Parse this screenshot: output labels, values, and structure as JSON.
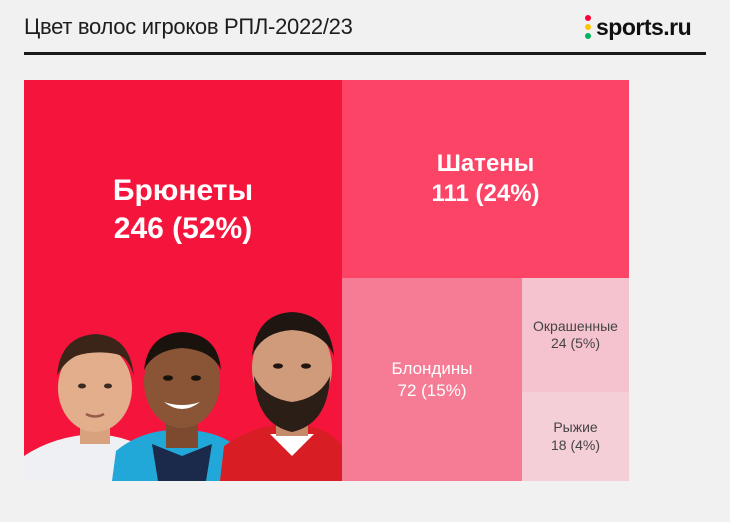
{
  "header": {
    "title": "Цвет волос игроков РПЛ-2022/23",
    "logo_text": "sports.ru",
    "logo_dot_colors": [
      "#ff0033",
      "#ffc400",
      "#00b35f"
    ]
  },
  "chart_data": {
    "type": "treemap",
    "title": "Цвет волос игроков РПЛ-2022/23",
    "items": [
      {
        "name": "Брюнеты",
        "value": 246,
        "share": 52,
        "value_label": "246 (52%)",
        "color": "#f5153c"
      },
      {
        "name": "Шатены",
        "value": 111,
        "share": 24,
        "value_label": "111 (24%)",
        "color": "#fc4467"
      },
      {
        "name": "Блондины",
        "value": 72,
        "share": 15,
        "value_label": "72 (15%)",
        "color": "#f57c94"
      },
      {
        "name": "Окрашенные",
        "value": 24,
        "share": 5,
        "value_label": "24 (5%)",
        "color": "#f5c3cf"
      },
      {
        "name": "Рыжие",
        "value": 18,
        "share": 4,
        "value_label": "18 (4%)",
        "color": "#f5cfd7"
      }
    ]
  },
  "illustration": {
    "description_icon": "three-player-portraits"
  }
}
